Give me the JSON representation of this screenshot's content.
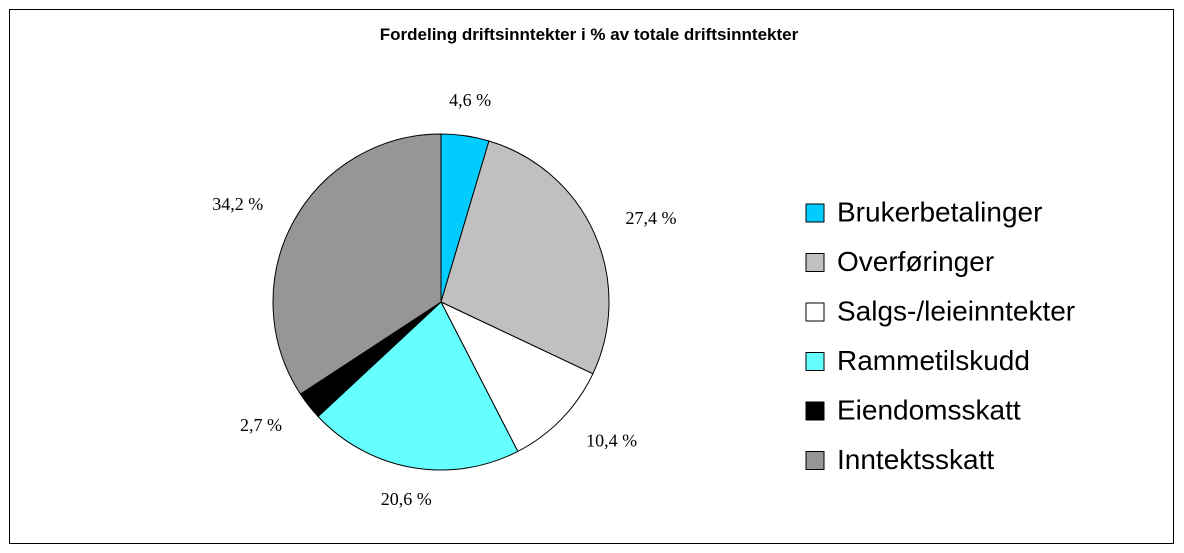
{
  "chart_data": {
    "type": "pie",
    "title": "Fordeling driftsinntekter i % av totale driftsinntekter",
    "categories": [
      "Brukerbetalinger",
      "Overføringer",
      "Salgs-/leieinntekter",
      "Rammetilskudd",
      "Eiendomsskatt",
      "Inntektsskatt"
    ],
    "values": [
      4.6,
      27.4,
      10.4,
      20.6,
      2.7,
      34.2
    ],
    "value_labels": [
      "4,6 %",
      "27,4 %",
      "10,4 %",
      "20,6 %",
      "2,7 %",
      "34,2 %"
    ],
    "colors": [
      "#00ccff",
      "#c0c0c0",
      "#ffffff",
      "#66ffff",
      "#000000",
      "#969696"
    ],
    "legend": "right"
  }
}
